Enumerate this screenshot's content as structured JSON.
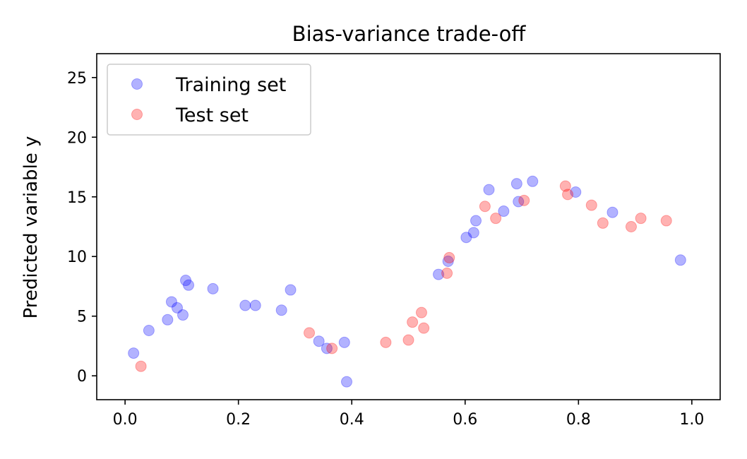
{
  "chart_data": {
    "type": "scatter",
    "title": "Bias-variance trade-off",
    "xlabel": "",
    "ylabel": "Predicted variable y",
    "xlim": [
      -0.05,
      1.05
    ],
    "ylim": [
      -2,
      27
    ],
    "xticks": [
      0.0,
      0.2,
      0.4,
      0.6,
      0.8,
      1.0
    ],
    "xtick_labels": [
      "0.0",
      "0.2",
      "0.4",
      "0.6",
      "0.8",
      "1.0"
    ],
    "yticks": [
      0,
      5,
      10,
      15,
      20,
      25
    ],
    "ytick_labels": [
      "0",
      "5",
      "10",
      "15",
      "20",
      "25"
    ],
    "grid": false,
    "legend_position": "top-left",
    "series": [
      {
        "name": "Training set",
        "color": "#0000ff",
        "points": [
          [
            0.015,
            1.9
          ],
          [
            0.042,
            3.8
          ],
          [
            0.075,
            4.7
          ],
          [
            0.082,
            6.2
          ],
          [
            0.092,
            5.7
          ],
          [
            0.102,
            5.1
          ],
          [
            0.107,
            8.0
          ],
          [
            0.112,
            7.6
          ],
          [
            0.155,
            7.3
          ],
          [
            0.212,
            5.9
          ],
          [
            0.23,
            5.9
          ],
          [
            0.276,
            5.5
          ],
          [
            0.292,
            7.2
          ],
          [
            0.342,
            2.9
          ],
          [
            0.356,
            2.3
          ],
          [
            0.387,
            2.8
          ],
          [
            0.391,
            -0.5
          ],
          [
            0.553,
            8.5
          ],
          [
            0.57,
            9.6
          ],
          [
            0.602,
            11.6
          ],
          [
            0.615,
            12.0
          ],
          [
            0.619,
            13.0
          ],
          [
            0.642,
            15.6
          ],
          [
            0.668,
            13.8
          ],
          [
            0.691,
            16.1
          ],
          [
            0.694,
            14.6
          ],
          [
            0.719,
            16.3
          ],
          [
            0.795,
            15.4
          ],
          [
            0.86,
            13.7
          ],
          [
            0.98,
            9.7
          ]
        ]
      },
      {
        "name": "Test set",
        "color": "#ff0000",
        "points": [
          [
            0.028,
            0.8
          ],
          [
            0.325,
            3.6
          ],
          [
            0.365,
            2.3
          ],
          [
            0.46,
            2.8
          ],
          [
            0.5,
            3.0
          ],
          [
            0.507,
            4.5
          ],
          [
            0.523,
            5.3
          ],
          [
            0.527,
            4.0
          ],
          [
            0.568,
            8.6
          ],
          [
            0.572,
            9.9
          ],
          [
            0.635,
            14.2
          ],
          [
            0.654,
            13.2
          ],
          [
            0.704,
            14.7
          ],
          [
            0.777,
            15.9
          ],
          [
            0.781,
            15.2
          ],
          [
            0.823,
            14.3
          ],
          [
            0.843,
            12.8
          ],
          [
            0.893,
            12.5
          ],
          [
            0.91,
            13.2
          ],
          [
            0.955,
            13.0
          ]
        ]
      }
    ]
  }
}
